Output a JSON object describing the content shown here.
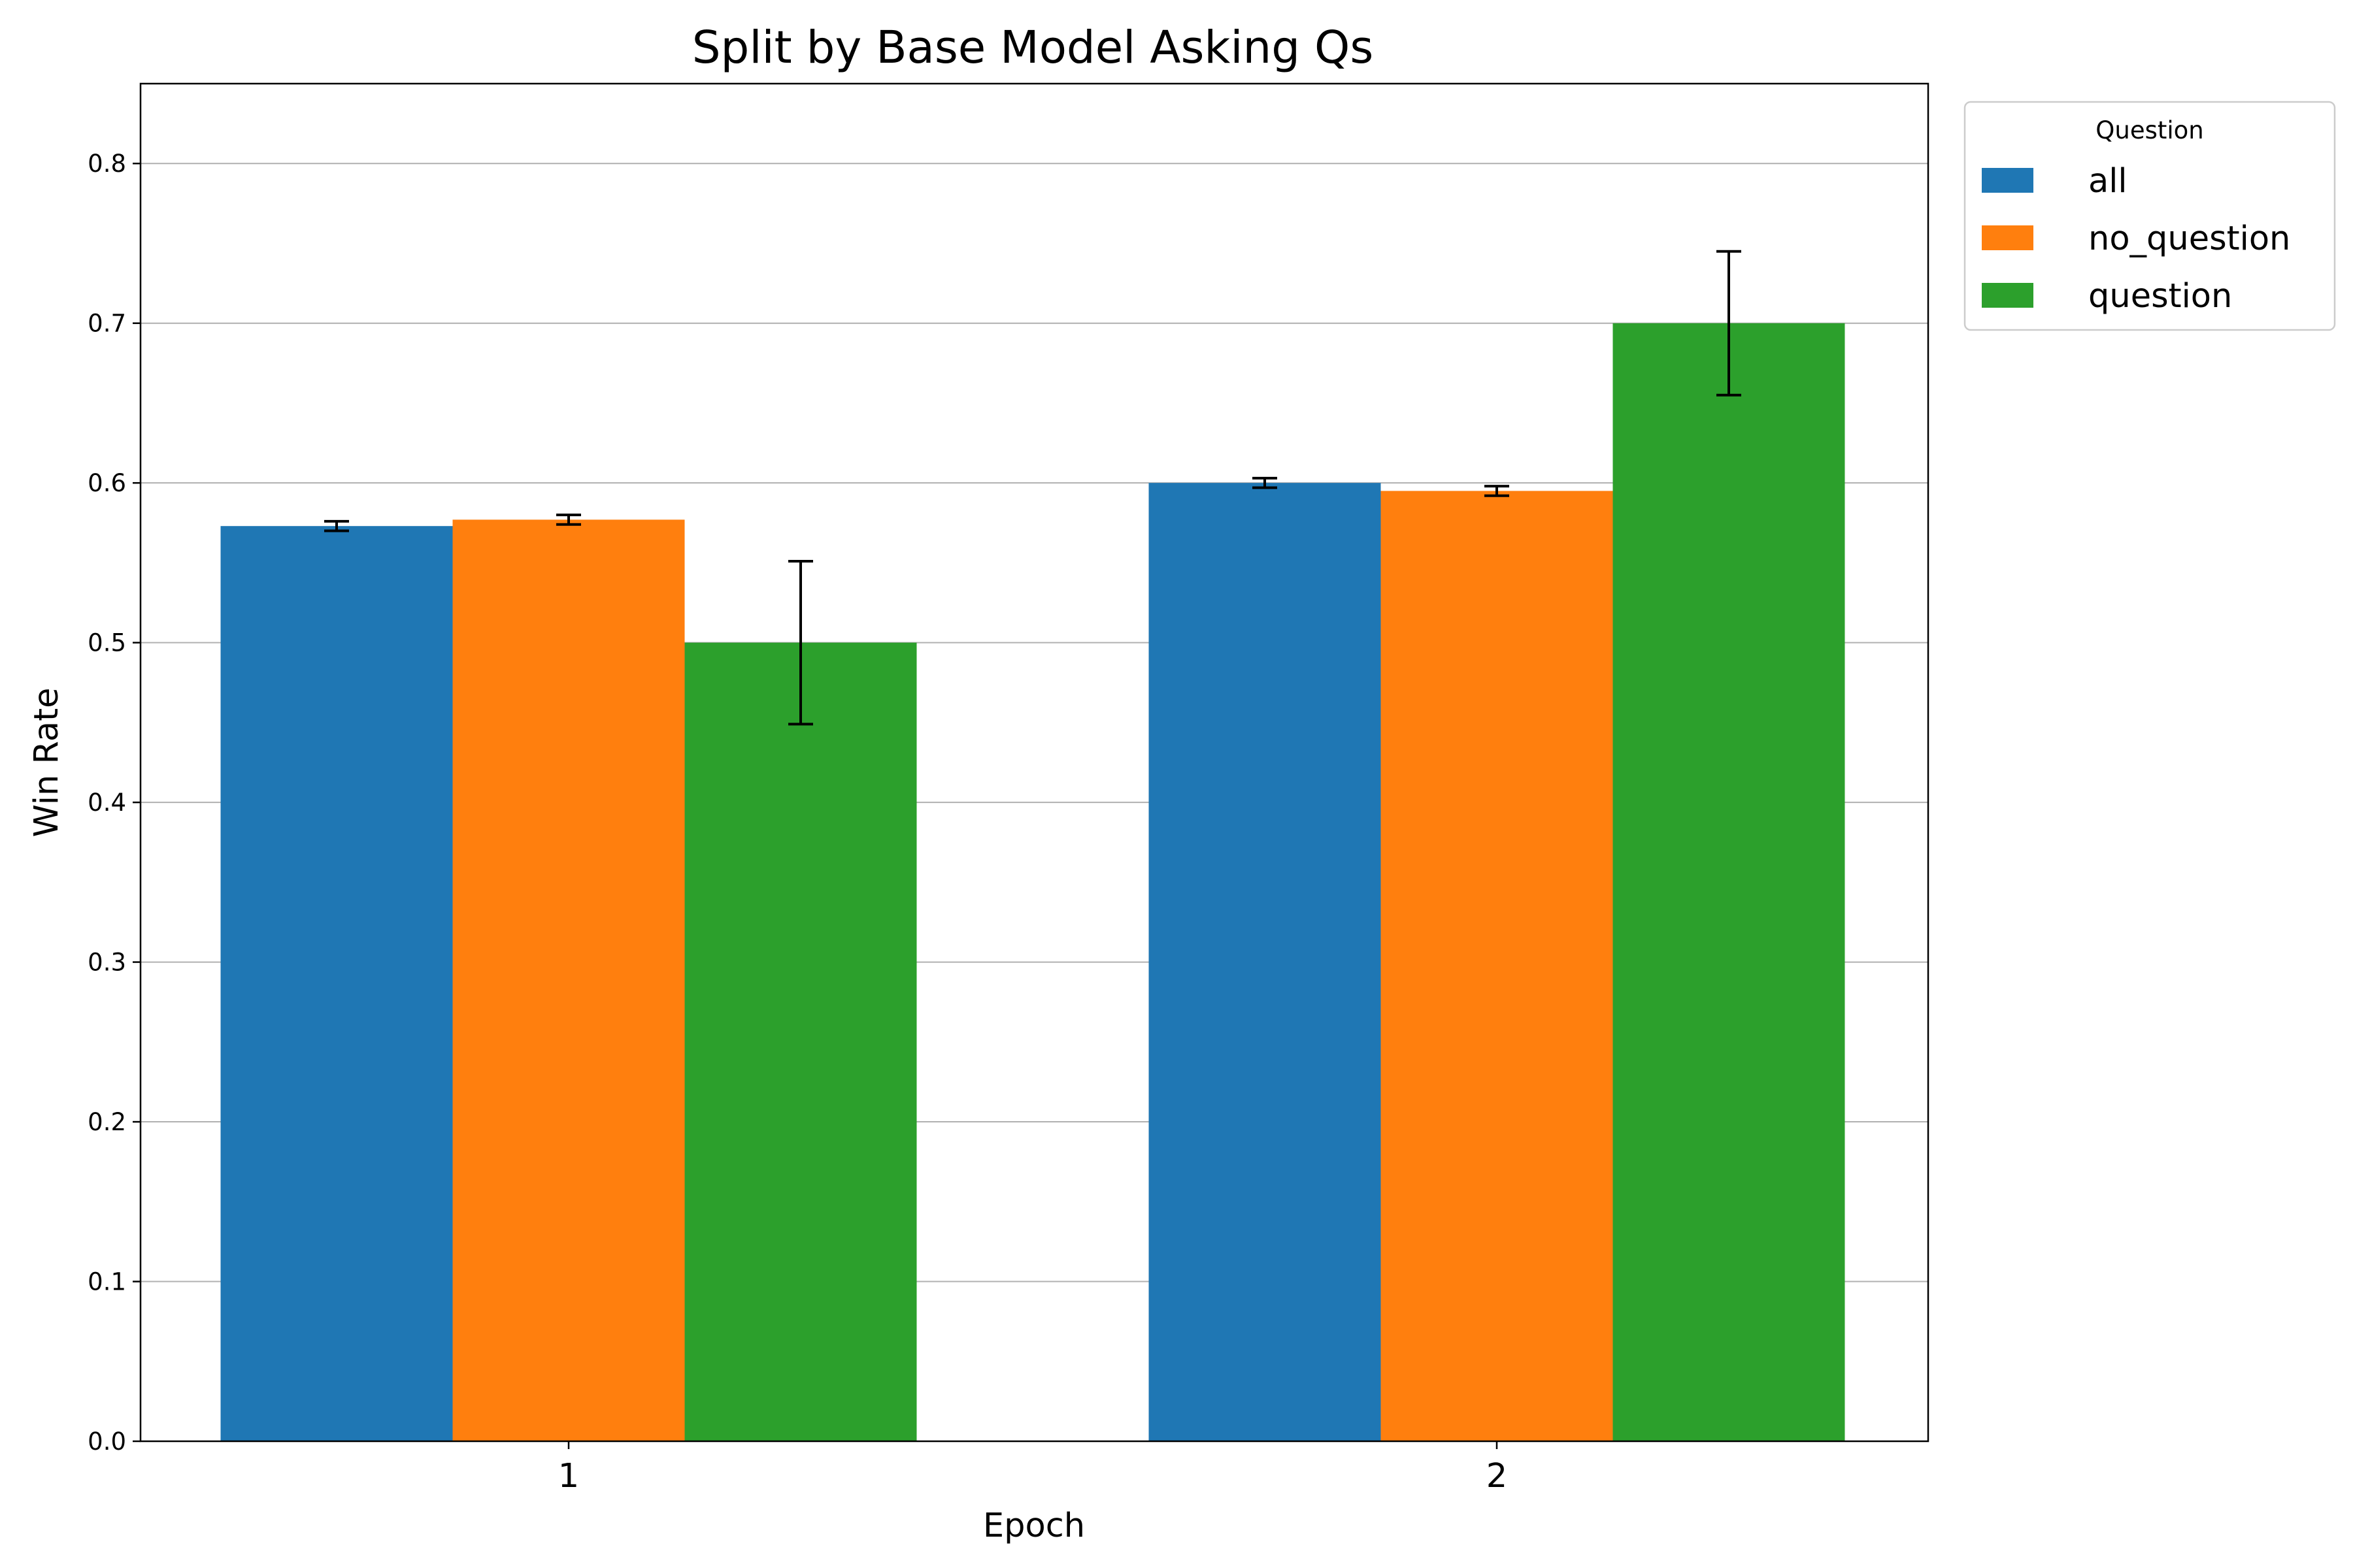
{
  "chart_data": {
    "type": "bar",
    "title": "Split by Base Model Asking Qs",
    "xlabel": "Epoch",
    "ylabel": "Win Rate",
    "categories": [
      "1",
      "2"
    ],
    "ylim": [
      0,
      0.85
    ],
    "yticks": [
      "0.0",
      "0.1",
      "0.2",
      "0.3",
      "0.4",
      "0.5",
      "0.6",
      "0.7",
      "0.8"
    ],
    "grid": "horizontal",
    "legend": {
      "title": "Question",
      "placement": "outside-top-right"
    },
    "series": [
      {
        "name": "all",
        "color": "#1f77b4",
        "values": [
          0.573,
          0.6
        ],
        "errors": [
          0.003,
          0.003
        ]
      },
      {
        "name": "no_question",
        "color": "#ff7f0e",
        "values": [
          0.577,
          0.595
        ],
        "errors": [
          0.003,
          0.003
        ]
      },
      {
        "name": "question",
        "color": "#2ca02c",
        "values": [
          0.5,
          0.7
        ],
        "errors": [
          0.051,
          0.045
        ]
      }
    ]
  }
}
